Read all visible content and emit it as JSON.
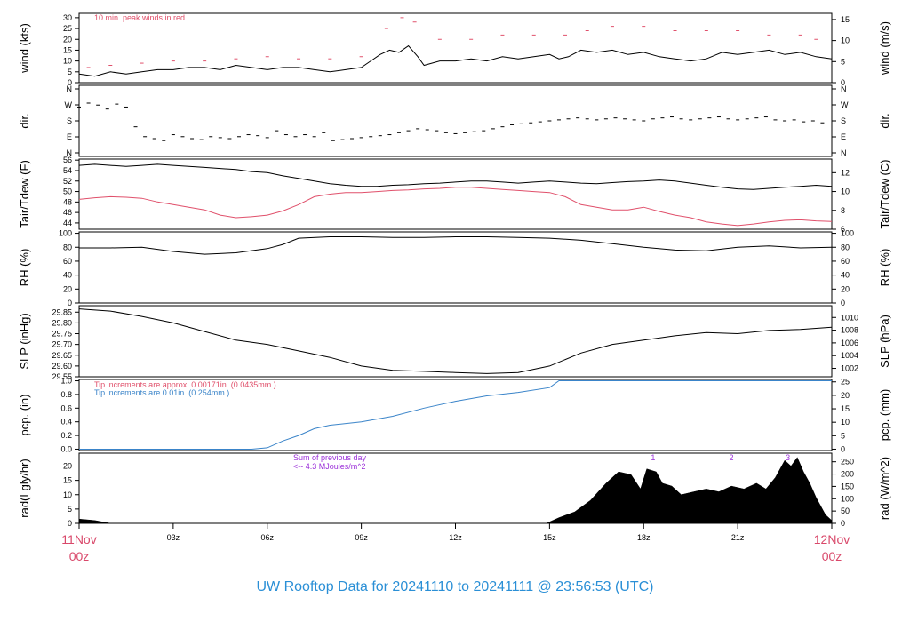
{
  "title": "UW Rooftop Data for 20241110  to  20241111 @ 23:56:53  (UTC)",
  "colors": {
    "title": "#2a8fd6",
    "red": "#e0506b",
    "blue": "#3a84c9",
    "purple": "#9b30d9",
    "axis_end_label": "#d9486a",
    "black": "#000000"
  },
  "x_axis": {
    "start_label_top": "11Nov",
    "start_label_bottom": "00z",
    "end_label_top": "12Nov",
    "end_label_bottom": "00z",
    "tick_hours": [
      0,
      3,
      6,
      9,
      12,
      15,
      18,
      21,
      24
    ],
    "tick_labels": [
      "",
      "03z",
      "06z",
      "09z",
      "12z",
      "15z",
      "18z",
      "21z",
      ""
    ]
  },
  "chart_data": [
    {
      "type": "line",
      "id": "wind",
      "left_label": "wind (kts)",
      "right_label": "wind (m/s)",
      "left_ticks": [
        0,
        5,
        10,
        15,
        20,
        25,
        30
      ],
      "right_ticks": [
        0,
        5,
        10,
        15
      ],
      "ylim": [
        0,
        32
      ],
      "annotation": "10 min. peak winds in red",
      "series": [
        {
          "name": "10 min. peak winds",
          "color": "red",
          "style": "dashes",
          "x": [
            0.3,
            1,
            2,
            3,
            4,
            5,
            6,
            7,
            8,
            9,
            9.8,
            10.3,
            10.7,
            11.5,
            12.5,
            13.5,
            14.5,
            15.5,
            16.2,
            17,
            18,
            19,
            20,
            21,
            22,
            23,
            23.5
          ],
          "y": [
            7,
            8,
            9,
            10,
            10,
            11,
            12,
            11,
            11,
            12,
            25,
            30,
            28,
            20,
            20,
            22,
            22,
            22,
            24,
            26,
            26,
            24,
            24,
            24,
            22,
            22,
            20
          ]
        },
        {
          "name": "wind",
          "color": "black",
          "style": "line",
          "x": [
            0,
            0.5,
            1,
            1.5,
            2,
            2.5,
            3,
            3.5,
            4,
            4.5,
            5,
            5.5,
            6,
            6.5,
            7,
            7.5,
            8,
            8.5,
            9,
            9.3,
            9.6,
            9.9,
            10.2,
            10.5,
            10.8,
            11,
            11.5,
            12,
            12.5,
            13,
            13.5,
            14,
            14.5,
            15,
            15.3,
            15.6,
            16,
            16.5,
            17,
            17.5,
            18,
            18.5,
            19,
            19.5,
            20,
            20.5,
            21,
            21.5,
            22,
            22.5,
            23,
            23.5,
            24
          ],
          "y": [
            4,
            3,
            5,
            4,
            5,
            6,
            6,
            7,
            7,
            6,
            8,
            7,
            6,
            7,
            7,
            6,
            5,
            6,
            7,
            10,
            13,
            15,
            14,
            17,
            12,
            8,
            10,
            10,
            11,
            10,
            12,
            11,
            12,
            13,
            11,
            12,
            15,
            14,
            15,
            13,
            14,
            12,
            11,
            10,
            11,
            14,
            13,
            14,
            15,
            13,
            14,
            12,
            11
          ]
        }
      ]
    },
    {
      "type": "scatter",
      "id": "dir",
      "left_label": "dir.",
      "right_label": "dir.",
      "left_ticks": [
        "N",
        "E",
        "S",
        "W",
        "N"
      ],
      "right_ticks": [
        "N",
        "E",
        "S",
        "W",
        "N"
      ],
      "ylim": [
        0,
        360
      ],
      "series": [
        {
          "name": "direction",
          "color": "black",
          "x": [
            0,
            0.3,
            0.6,
            0.9,
            1.2,
            1.5,
            1.8,
            2.1,
            2.4,
            2.7,
            3,
            3.3,
            3.6,
            3.9,
            4.2,
            4.5,
            4.8,
            5.1,
            5.4,
            5.7,
            6,
            6.3,
            6.6,
            6.9,
            7.2,
            7.5,
            7.8,
            8.1,
            8.4,
            8.7,
            9,
            9.3,
            9.6,
            9.9,
            10.2,
            10.5,
            10.8,
            11.1,
            11.4,
            11.7,
            12,
            12.3,
            12.6,
            12.9,
            13.2,
            13.5,
            13.8,
            14.1,
            14.4,
            14.7,
            15,
            15.3,
            15.6,
            15.9,
            16.2,
            16.5,
            16.8,
            17.1,
            17.4,
            17.7,
            18,
            18.3,
            18.6,
            18.9,
            19.2,
            19.5,
            19.8,
            20.1,
            20.4,
            20.7,
            21,
            21.3,
            21.6,
            21.9,
            22.2,
            22.5,
            22.8,
            23.1,
            23.4,
            23.7
          ],
          "y": [
            250,
            270,
            260,
            240,
            265,
            250,
            150,
            100,
            90,
            80,
            110,
            100,
            90,
            85,
            100,
            95,
            90,
            100,
            110,
            105,
            95,
            130,
            110,
            100,
            110,
            100,
            120,
            80,
            85,
            90,
            95,
            100,
            105,
            110,
            120,
            130,
            140,
            135,
            130,
            120,
            115,
            120,
            125,
            130,
            140,
            150,
            160,
            165,
            170,
            175,
            180,
            185,
            190,
            195,
            190,
            185,
            190,
            195,
            190,
            185,
            180,
            190,
            195,
            200,
            190,
            185,
            190,
            195,
            200,
            190,
            185,
            190,
            195,
            200,
            185,
            180,
            185,
            175,
            180,
            170
          ]
        }
      ]
    },
    {
      "type": "line",
      "id": "temp",
      "left_label": "Tair/Tdew (F)",
      "right_label": "Tair/Tdew (C)",
      "left_ticks": [
        44,
        46,
        48,
        50,
        52,
        54,
        56
      ],
      "right_ticks": [
        6,
        8,
        10,
        12
      ],
      "ylim": [
        42.8,
        56.2
      ],
      "series": [
        {
          "name": "Tair",
          "color": "black",
          "x": [
            0,
            0.5,
            1,
            1.5,
            2,
            2.5,
            3,
            3.5,
            4,
            4.5,
            5,
            5.5,
            6,
            6.5,
            7,
            7.5,
            8,
            8.5,
            9,
            9.5,
            10,
            10.5,
            11,
            11.5,
            12,
            12.5,
            13,
            13.5,
            14,
            14.5,
            15,
            15.5,
            16,
            16.5,
            17,
            17.5,
            18,
            18.5,
            19,
            19.5,
            20,
            20.5,
            21,
            21.5,
            22,
            22.5,
            23,
            23.5,
            24
          ],
          "y": [
            55,
            55.2,
            55,
            54.8,
            55,
            55.2,
            55,
            54.8,
            54.6,
            54.4,
            54.2,
            53.8,
            53.6,
            53,
            52.5,
            52,
            51.5,
            51.2,
            51,
            51,
            51.2,
            51.3,
            51.5,
            51.6,
            51.8,
            52,
            52,
            51.8,
            51.6,
            51.8,
            52,
            51.8,
            51.6,
            51.5,
            51.7,
            51.9,
            52,
            52.2,
            52,
            51.6,
            51.2,
            50.8,
            50.5,
            50.4,
            50.6,
            50.8,
            51,
            51.2,
            51
          ]
        },
        {
          "name": "Tdew",
          "color": "red",
          "x": [
            0,
            0.5,
            1,
            1.5,
            2,
            2.5,
            3,
            3.5,
            4,
            4.5,
            5,
            5.5,
            6,
            6.5,
            7,
            7.5,
            8,
            8.5,
            9,
            9.5,
            10,
            10.5,
            11,
            11.5,
            12,
            12.5,
            13,
            13.5,
            14,
            14.5,
            15,
            15.5,
            16,
            16.5,
            17,
            17.5,
            18,
            18.5,
            19,
            19.5,
            20,
            20.5,
            21,
            21.5,
            22,
            22.5,
            23,
            23.5,
            24
          ],
          "y": [
            48.5,
            48.8,
            49,
            48.9,
            48.7,
            48,
            47.5,
            47,
            46.5,
            45.5,
            45,
            45.2,
            45.5,
            46.3,
            47.5,
            49,
            49.5,
            49.8,
            49.8,
            50,
            50.2,
            50.3,
            50.5,
            50.6,
            50.8,
            50.8,
            50.6,
            50.4,
            50.2,
            50,
            49.8,
            49,
            47.5,
            47,
            46.5,
            46.5,
            47,
            46.2,
            45.5,
            45,
            44.2,
            43.8,
            43.5,
            43.8,
            44.2,
            44.5,
            44.6,
            44.4,
            44.3
          ]
        }
      ]
    },
    {
      "type": "line",
      "id": "rh",
      "left_label": "RH (%)",
      "right_label": "RH (%)",
      "left_ticks": [
        0,
        20,
        40,
        60,
        80,
        100
      ],
      "right_ticks": [
        0,
        20,
        40,
        60,
        80,
        100
      ],
      "ylim": [
        0,
        102
      ],
      "series": [
        {
          "name": "RH",
          "color": "black",
          "x": [
            0,
            1,
            2,
            3,
            4,
            5,
            6,
            6.5,
            7,
            8,
            9,
            10,
            11,
            12,
            13,
            14,
            15,
            16,
            17,
            18,
            19,
            20,
            21,
            22,
            23,
            24
          ],
          "y": [
            79,
            79,
            80,
            74,
            70,
            72,
            78,
            84,
            93,
            95,
            95,
            94,
            94,
            95,
            95,
            94,
            93,
            90,
            85,
            80,
            76,
            75,
            80,
            82,
            79,
            80
          ]
        }
      ]
    },
    {
      "type": "line",
      "id": "slp",
      "left_label": "SLP (inHg)",
      "right_label": "SLP (hPa)",
      "left_ticks": [
        29.55,
        29.6,
        29.65,
        29.7,
        29.75,
        29.8,
        29.85
      ],
      "right_ticks": [
        1002,
        1004,
        1006,
        1008,
        1010,
        1012
      ],
      "ylim": [
        29.55,
        29.88
      ],
      "series": [
        {
          "name": "SLP",
          "color": "black",
          "x": [
            0,
            1,
            2,
            3,
            4,
            5,
            6,
            7,
            8,
            9,
            10,
            11,
            12,
            13,
            14,
            15,
            16,
            17,
            18,
            19,
            20,
            21,
            22,
            23,
            24
          ],
          "y": [
            29.865,
            29.855,
            29.83,
            29.8,
            29.76,
            29.72,
            29.7,
            29.67,
            29.64,
            29.6,
            29.58,
            29.575,
            29.57,
            29.565,
            29.57,
            29.6,
            29.66,
            29.7,
            29.72,
            29.74,
            29.755,
            29.75,
            29.765,
            29.77,
            29.78
          ]
        }
      ]
    },
    {
      "type": "line",
      "id": "pcp",
      "left_label": "pcp. (in)",
      "right_label": "pcp. (mm)",
      "left_ticks": [
        0.0,
        0.2,
        0.4,
        0.6,
        0.8,
        1.0
      ],
      "right_ticks": [
        0,
        5,
        10,
        15,
        20,
        25
      ],
      "ylim": [
        -0.02,
        1.02
      ],
      "annotation_red": "Tip increments are approx. 0.00171in. (0.0435mm.)",
      "annotation_blue": "Tip increments are 0.01in. (0.254mm.)",
      "series": [
        {
          "name": "pcp",
          "color": "blue",
          "x": [
            0,
            5.5,
            6,
            6.5,
            7,
            7.5,
            8,
            9,
            10,
            11,
            12,
            13,
            14,
            15,
            15.3,
            16,
            24
          ],
          "y": [
            0,
            0,
            0.02,
            0.12,
            0.2,
            0.3,
            0.35,
            0.4,
            0.48,
            0.6,
            0.7,
            0.78,
            0.83,
            0.9,
            1.0,
            1.0,
            1.0
          ]
        }
      ]
    },
    {
      "type": "area",
      "id": "rad",
      "left_label": "rad(Lgly/hr)",
      "right_label": "rad (W/m^2)",
      "left_ticks": [
        0,
        5,
        10,
        15,
        20
      ],
      "right_ticks": [
        0,
        50,
        100,
        150,
        200,
        250
      ],
      "ylim": [
        0,
        24.5
      ],
      "annotation_line1": "Sum of previous day",
      "annotation_line2": "<-- 4.3 MJoules/m^2",
      "markers": [
        {
          "label": "1",
          "x": 18.3
        },
        {
          "label": "2",
          "x": 20.8
        },
        {
          "label": "3",
          "x": 22.6
        }
      ],
      "series": [
        {
          "name": "radiation",
          "color": "black",
          "x": [
            0,
            0.5,
            1,
            14.9,
            15.3,
            15.8,
            16.3,
            16.8,
            17.2,
            17.6,
            17.9,
            18.1,
            18.4,
            18.6,
            18.9,
            19.2,
            19.6,
            20,
            20.4,
            20.8,
            21.2,
            21.6,
            21.9,
            22.2,
            22.5,
            22.7,
            22.9,
            23.1,
            23.3,
            23.5,
            23.8,
            24
          ],
          "y": [
            1.5,
            1,
            0,
            0,
            2,
            4,
            8,
            14,
            18,
            17,
            12,
            19,
            18,
            14,
            13,
            10,
            11,
            12,
            11,
            13,
            12,
            14,
            12,
            16,
            22,
            20,
            23,
            18,
            14,
            9,
            3,
            1
          ]
        }
      ]
    }
  ]
}
